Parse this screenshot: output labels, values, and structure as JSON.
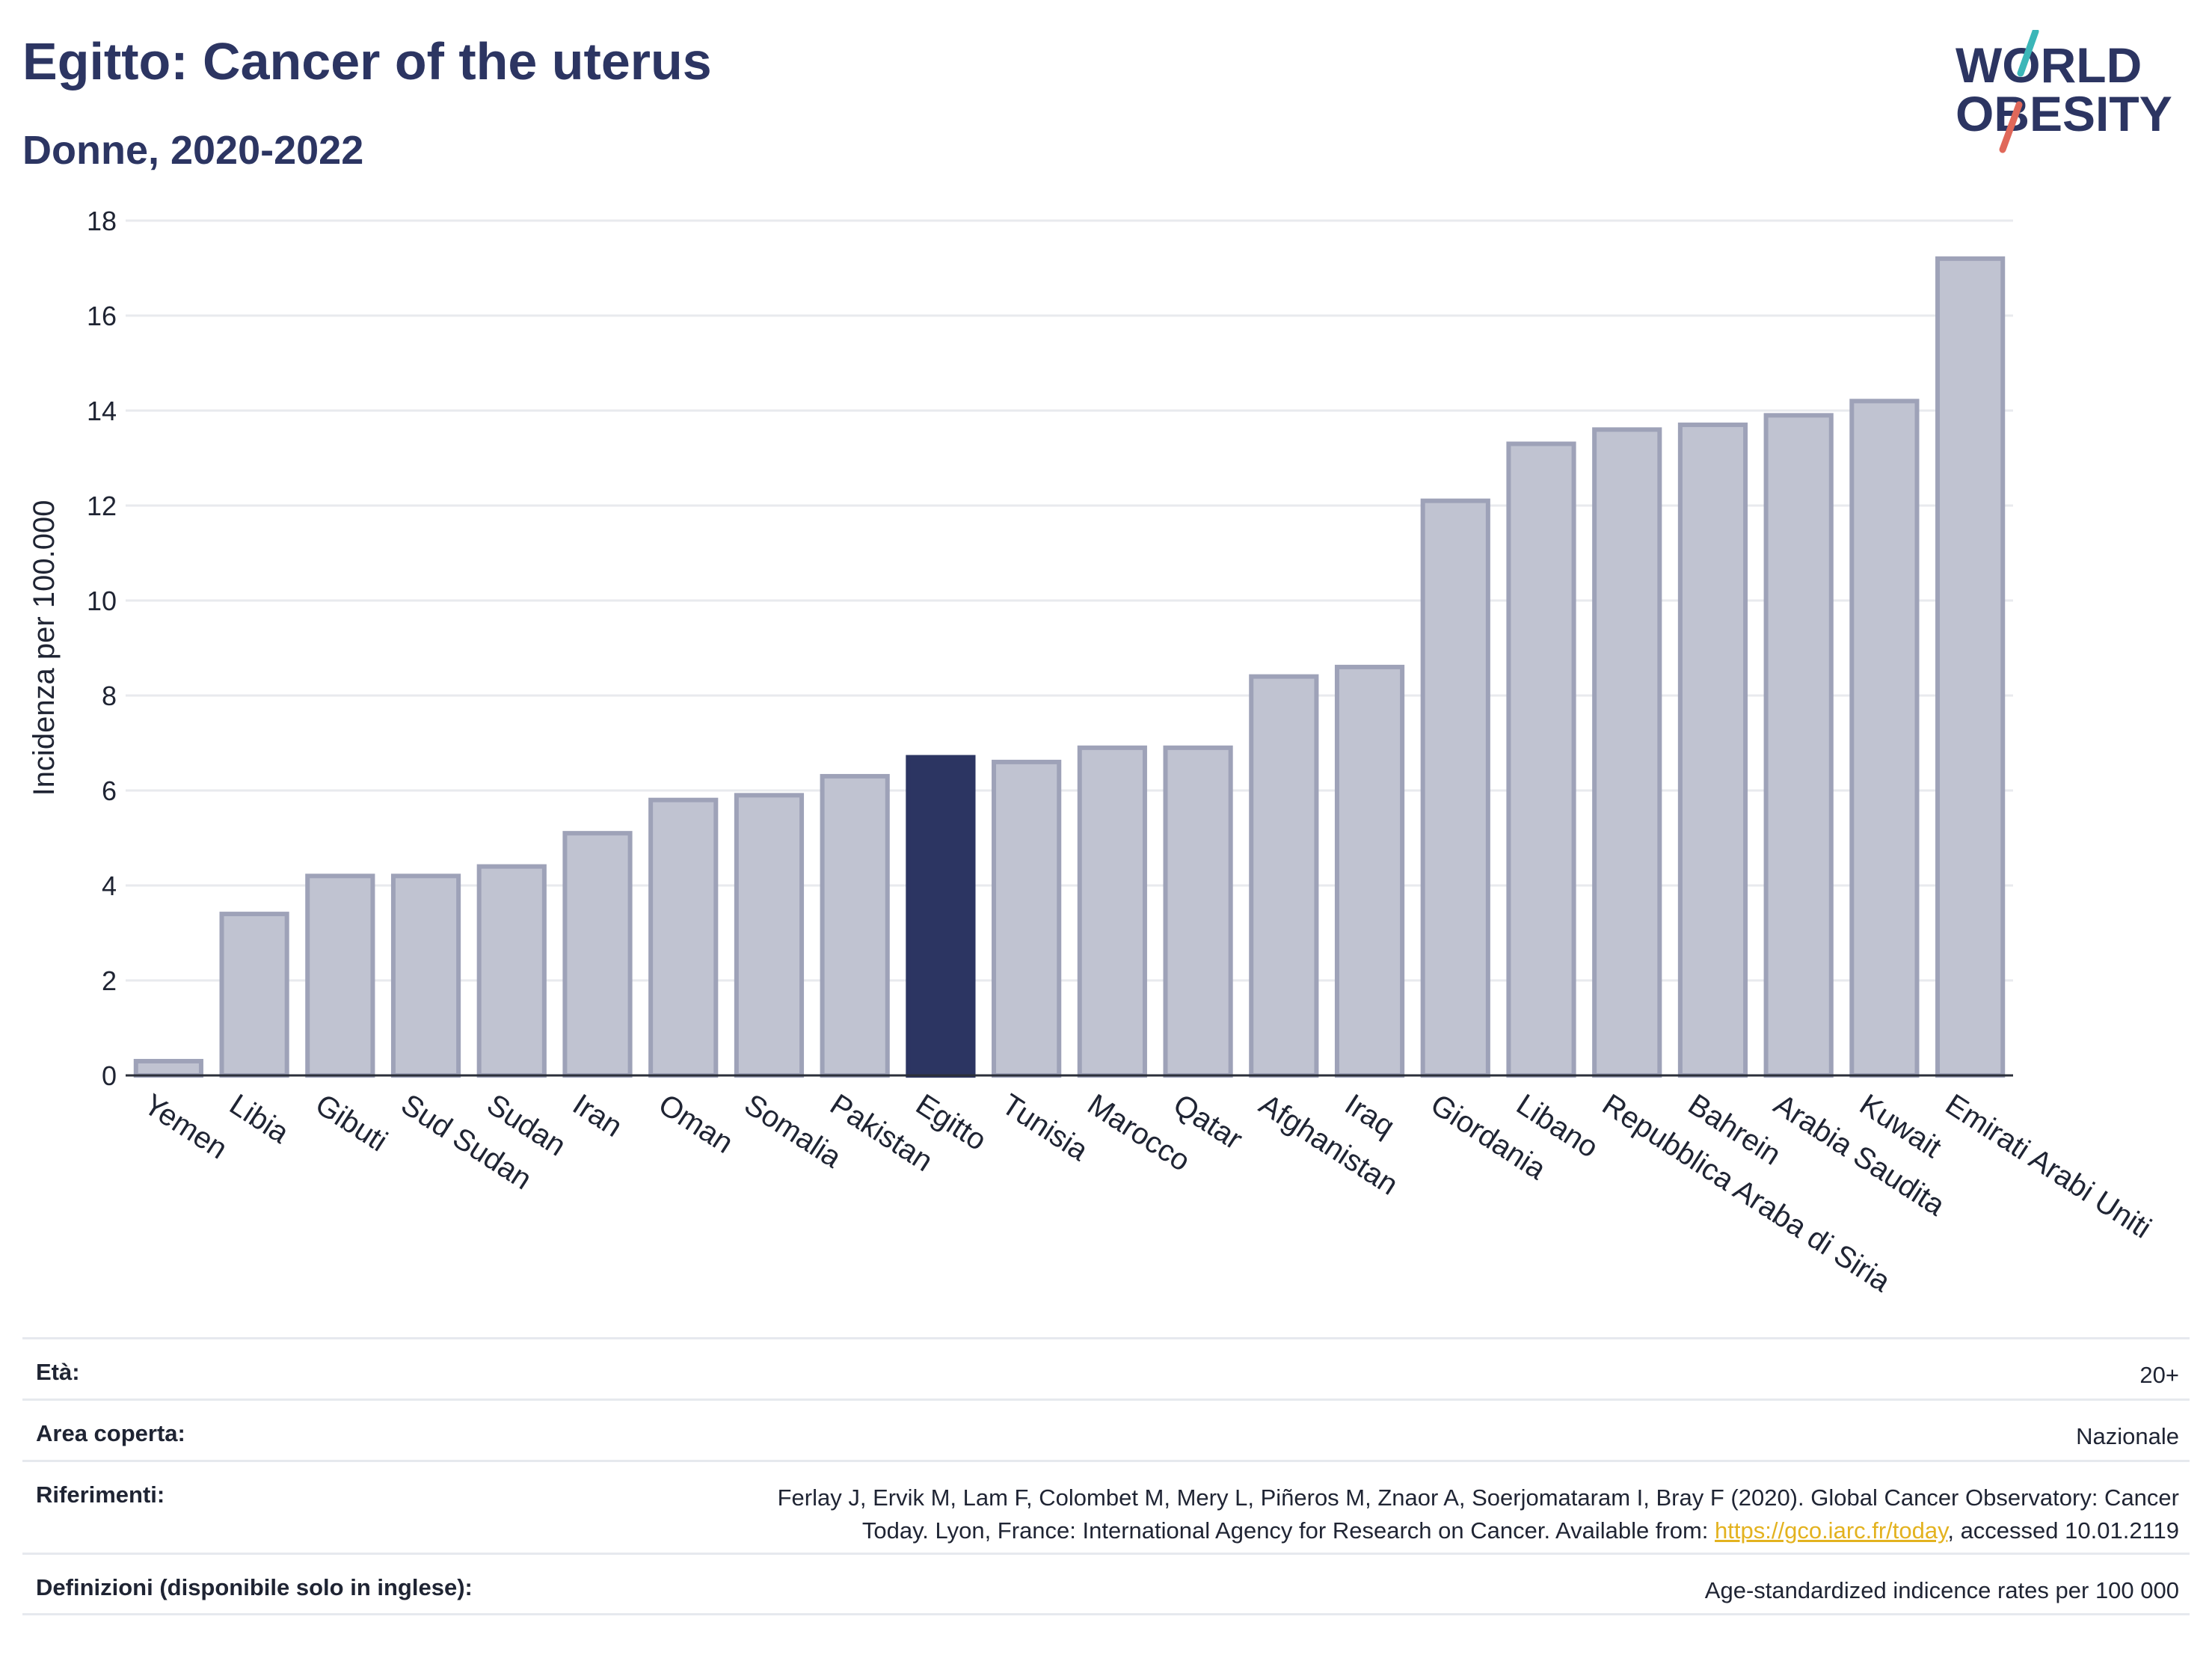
{
  "header": {
    "title": "Egitto: Cancer of the uterus",
    "subtitle": "Donne, 2020-2022"
  },
  "logo": {
    "line1": "WORLD",
    "line2": "OBESITY"
  },
  "colors": {
    "bar_default": "#c0c3d1",
    "bar_border": "#9ea2b8",
    "bar_highlight": "#2c3562",
    "title": "#2c3562",
    "logo_teal": "#3bb6b8",
    "logo_red": "#e0685a"
  },
  "chart_data": {
    "type": "bar",
    "title": "Egitto: Cancer of the uterus",
    "subtitle": "Donne, 2020-2022",
    "xlabel": "",
    "ylabel": "Incidenza per 100.000",
    "ylim": [
      0,
      18
    ],
    "yticks": [
      0,
      2,
      4,
      6,
      8,
      10,
      12,
      14,
      16,
      18
    ],
    "grid": true,
    "highlight": "Egitto",
    "categories": [
      "Yemen",
      "Libia",
      "Gibuti",
      "Sud Sudan",
      "Sudan",
      "Iran",
      "Oman",
      "Somalia",
      "Pakistan",
      "Egitto",
      "Tunisia",
      "Marocco",
      "Qatar",
      "Afghanistan",
      "Iraq",
      "Giordania",
      "Libano",
      "Repubblica Araba di Siria",
      "Bahrein",
      "Arabia Saudita",
      "Kuwait",
      "Emirati Arabi Uniti"
    ],
    "values": [
      0.3,
      3.4,
      4.2,
      4.2,
      4.4,
      5.1,
      5.8,
      5.9,
      6.3,
      6.7,
      6.6,
      6.9,
      6.9,
      8.4,
      8.6,
      12.1,
      13.3,
      13.6,
      13.7,
      13.9,
      14.2,
      17.2
    ]
  },
  "meta": {
    "age_label": "Età:",
    "age_value": "20+",
    "area_label": "Area coperta:",
    "area_value": "Nazionale",
    "refs_label": "Riferimenti:",
    "refs_line1": "Ferlay J, Ervik M, Lam F, Colombet M, Mery L, Piñeros M, Znaor A, Soerjomataram I, Bray F (2020). Global Cancer Observatory: Cancer",
    "refs_line2_pre": "Today. Lyon, France: International Agency for Research on Cancer. Available from: ",
    "refs_link": "https://gco.iarc.fr/today",
    "refs_line2_post": ", accessed 10.01.2119",
    "defs_label": "Definizioni (disponibile solo in inglese):",
    "defs_value": "Age-standardized indicence rates per 100 000"
  }
}
